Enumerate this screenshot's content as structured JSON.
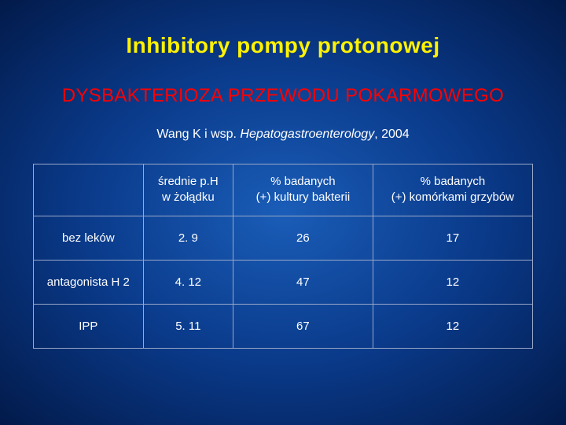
{
  "title": "Inhibitory pompy protonowej",
  "subtitle": "DYSBAKTERIOZA PRZEWODU POKARMOWEGO",
  "citation_prefix": "Wang K i wsp. ",
  "citation_journal": "Hepatogastroenterology",
  "citation_suffix": ", 2004",
  "headers": {
    "c0": "",
    "c1a": "średnie p.H",
    "c1b": "w żołądku",
    "c2a": "% badanych",
    "c2b": "(+) kultury bakterii",
    "c3a": "% badanych",
    "c3b": "(+) komórkami grzybów"
  },
  "rows": [
    {
      "label": "bez leków",
      "ph": "2. 9",
      "bacteria": "26",
      "fungi": "17"
    },
    {
      "label": "antagonista H 2",
      "ph": "4. 12",
      "bacteria": "47",
      "fungi": "12"
    },
    {
      "label": "IPP",
      "ph": "5. 11",
      "bacteria": "67",
      "fungi": "12"
    }
  ],
  "style": {
    "title_color": "#fff200",
    "subtitle_color": "#ff0000",
    "text_color": "#ffffff",
    "border_color": "#9aa8c8",
    "bg_center": "#1a5db8",
    "bg_edge": "#021a4a",
    "title_fontsize": 28,
    "subtitle_fontsize": 24,
    "citation_fontsize": 16,
    "cell_fontsize": 15,
    "col_widths_pct": [
      22,
      18,
      28,
      32
    ]
  }
}
